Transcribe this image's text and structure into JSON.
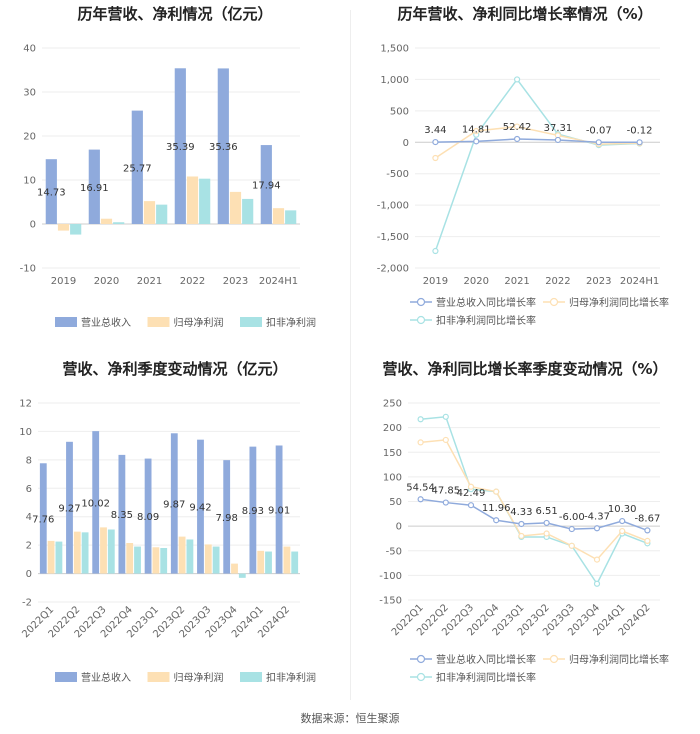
{
  "source_text": "数据来源：恒生聚源",
  "chart_data": [
    {
      "type": "bar",
      "title": "历年营收、净利情况（亿元）",
      "categories": [
        "2019",
        "2020",
        "2021",
        "2022",
        "2023",
        "2024H1"
      ],
      "ylim": [
        -10,
        40
      ],
      "yticks": [
        -10,
        0,
        10,
        20,
        30,
        40
      ],
      "grid": true,
      "legend_position": "bottom",
      "series": [
        {
          "name": "营业总收入",
          "color": "#8faadc",
          "values": [
            14.73,
            16.91,
            25.77,
            35.39,
            35.36,
            17.94
          ],
          "labels": [
            "14.73",
            "16.91",
            "25.77",
            "35.39",
            "35.36",
            "17.94"
          ]
        },
        {
          "name": "归母净利润",
          "color": "#fde0b4",
          "values": [
            -1.5,
            1.2,
            5.2,
            10.8,
            7.3,
            3.6
          ]
        },
        {
          "name": "扣非净利润",
          "color": "#a8e2e4",
          "values": [
            -2.4,
            0.4,
            4.4,
            10.3,
            5.7,
            3.1
          ]
        }
      ]
    },
    {
      "type": "line",
      "title": "历年营收、净利同比增长率情况（%）",
      "categories": [
        "2019",
        "2020",
        "2021",
        "2022",
        "2023",
        "2024H1"
      ],
      "ylim": [
        -2000,
        1500
      ],
      "yticks": [
        -2000,
        -1500,
        -1000,
        -500,
        0,
        500,
        1000,
        1500
      ],
      "ytick_labels": [
        "-2,000",
        "-1,500",
        "-1,000",
        "-500",
        "0",
        "500",
        "1,000",
        "1,500"
      ],
      "grid": true,
      "legend_position": "bottom",
      "series": [
        {
          "name": "营业总收入同比增长率",
          "color": "#8faadc",
          "values": [
            3.44,
            14.81,
            52.42,
            37.31,
            -0.07,
            -0.12
          ],
          "labels": [
            "3.44",
            "14.81",
            "52.42",
            "37.31",
            "-0.07",
            "-0.12"
          ]
        },
        {
          "name": "归母净利润同比增长率",
          "color": "#fde0b4",
          "values": [
            -250,
            180,
            250,
            110,
            -30,
            -15
          ]
        },
        {
          "name": "扣非净利润同比增长率",
          "color": "#a8e2e4",
          "values": [
            -1730,
            120,
            1000,
            130,
            -45,
            -20
          ]
        }
      ]
    },
    {
      "type": "bar",
      "title": "营收、净利季度变动情况（亿元）",
      "categories": [
        "2022Q1",
        "2022Q2",
        "2022Q3",
        "2022Q4",
        "2023Q1",
        "2023Q2",
        "2023Q3",
        "2023Q4",
        "2024Q1",
        "2024Q2"
      ],
      "ylim": [
        -2,
        12
      ],
      "yticks": [
        -2,
        0,
        2,
        4,
        6,
        8,
        10,
        12
      ],
      "grid": true,
      "legend_position": "bottom",
      "series": [
        {
          "name": "营业总收入",
          "color": "#8faadc",
          "values": [
            7.76,
            9.27,
            10.02,
            8.35,
            8.09,
            9.87,
            9.42,
            7.98,
            8.93,
            9.01
          ],
          "labels": [
            "7.76",
            "9.27",
            "10.02",
            "8.35",
            "8.09",
            "9.87",
            "9.42",
            "7.98",
            "8.93",
            "9.01"
          ]
        },
        {
          "name": "归母净利润",
          "color": "#fde0b4",
          "values": [
            2.3,
            2.95,
            3.25,
            2.15,
            1.85,
            2.6,
            2.05,
            0.7,
            1.6,
            1.9
          ]
        },
        {
          "name": "扣非净利润",
          "color": "#a8e2e4",
          "values": [
            2.25,
            2.9,
            3.1,
            1.9,
            1.8,
            2.4,
            1.9,
            -0.3,
            1.55,
            1.55
          ]
        }
      ]
    },
    {
      "type": "line",
      "title": "营收、净利同比增长率季度变动情况（%）",
      "categories": [
        "2022Q1",
        "2022Q2",
        "2022Q3",
        "2022Q4",
        "2023Q1",
        "2023Q2",
        "2023Q3",
        "2023Q4",
        "2024Q1",
        "2024Q2"
      ],
      "ylim": [
        -150,
        250
      ],
      "yticks": [
        -150,
        -100,
        -50,
        0,
        50,
        100,
        150,
        200,
        250
      ],
      "grid": true,
      "legend_position": "bottom",
      "series": [
        {
          "name": "营业总收入同比增长率",
          "color": "#8faadc",
          "values": [
            54.54,
            47.85,
            42.49,
            11.96,
            4.33,
            6.51,
            -6.0,
            -4.37,
            10.3,
            -8.67
          ],
          "labels": [
            "54.54",
            "47.85",
            "42.49",
            "11.96",
            "4.33",
            "6.51",
            "-6.00",
            "-4.37",
            "10.30",
            "-8.67"
          ]
        },
        {
          "name": "归母净利润同比增长率",
          "color": "#fde0b4",
          "values": [
            170,
            175,
            80,
            70,
            -20,
            -15,
            -40,
            -68,
            -10,
            -30
          ]
        },
        {
          "name": "扣非净利润同比增长率",
          "color": "#a8e2e4",
          "values": [
            217,
            222,
            75,
            70,
            -22,
            -22,
            -40,
            -117,
            -15,
            -35
          ]
        }
      ]
    }
  ]
}
